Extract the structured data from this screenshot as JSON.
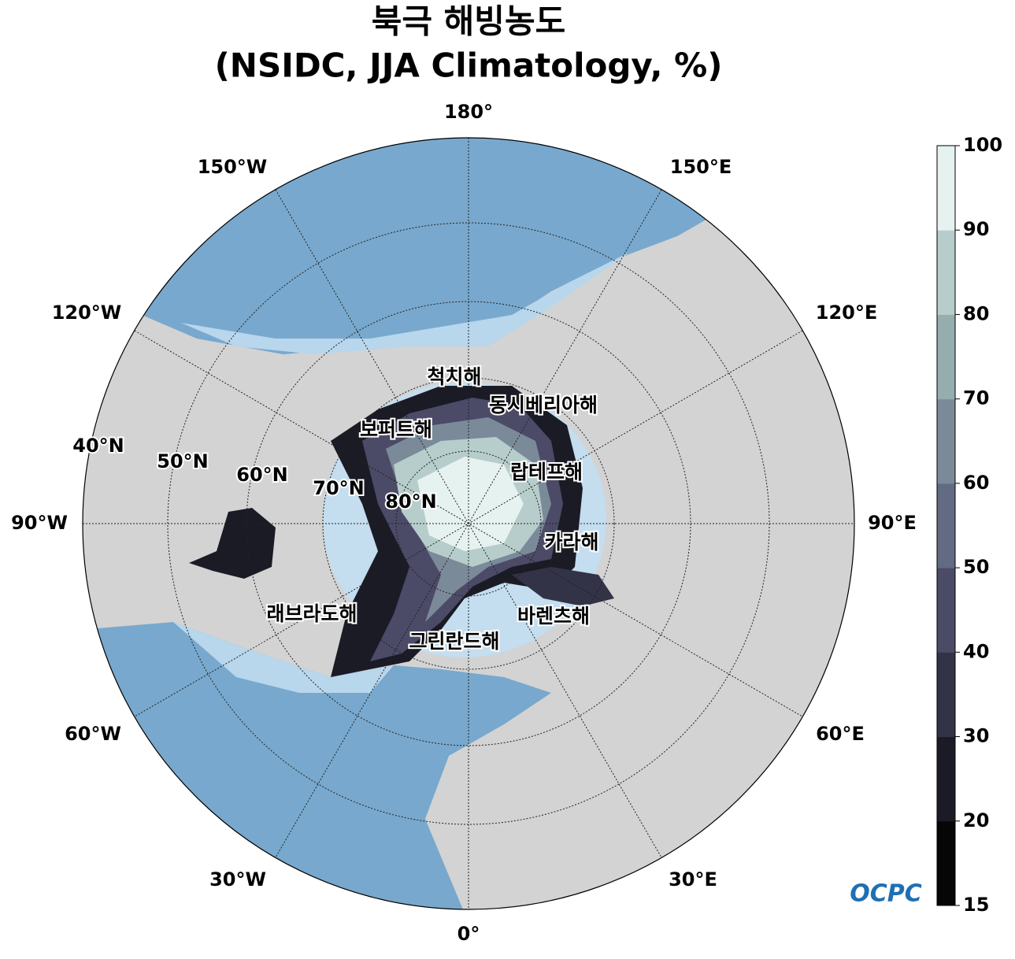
{
  "header": {
    "title": "북극 해빙농도",
    "subtitle": "(NSIDC, JJA Climatology, %)"
  },
  "longitude_labels": [
    "180°",
    "150°E",
    "120°E",
    "90°E",
    "60°E",
    "30°E",
    "0°",
    "30°W",
    "60°W",
    "90°W",
    "120°W",
    "150°W"
  ],
  "latitude_labels": [
    "40°N",
    "50°N",
    "60°N",
    "70°N",
    "80°N"
  ],
  "sea_labels": [
    "척치해",
    "동시베리아해",
    "보퍼트해",
    "랍테프해",
    "카라해",
    "바렌츠해",
    "그린란드해",
    "래브라도해"
  ],
  "colorbar": {
    "ticks": [
      15,
      20,
      30,
      40,
      50,
      60,
      70,
      80,
      90,
      100
    ],
    "colors": [
      "#060606",
      "#1b1b26",
      "#333348",
      "#4b4b68",
      "#636a83",
      "#7b8a99",
      "#96adae",
      "#b6cdcb",
      "#e6f2f0"
    ]
  },
  "logo": "OCPC"
}
